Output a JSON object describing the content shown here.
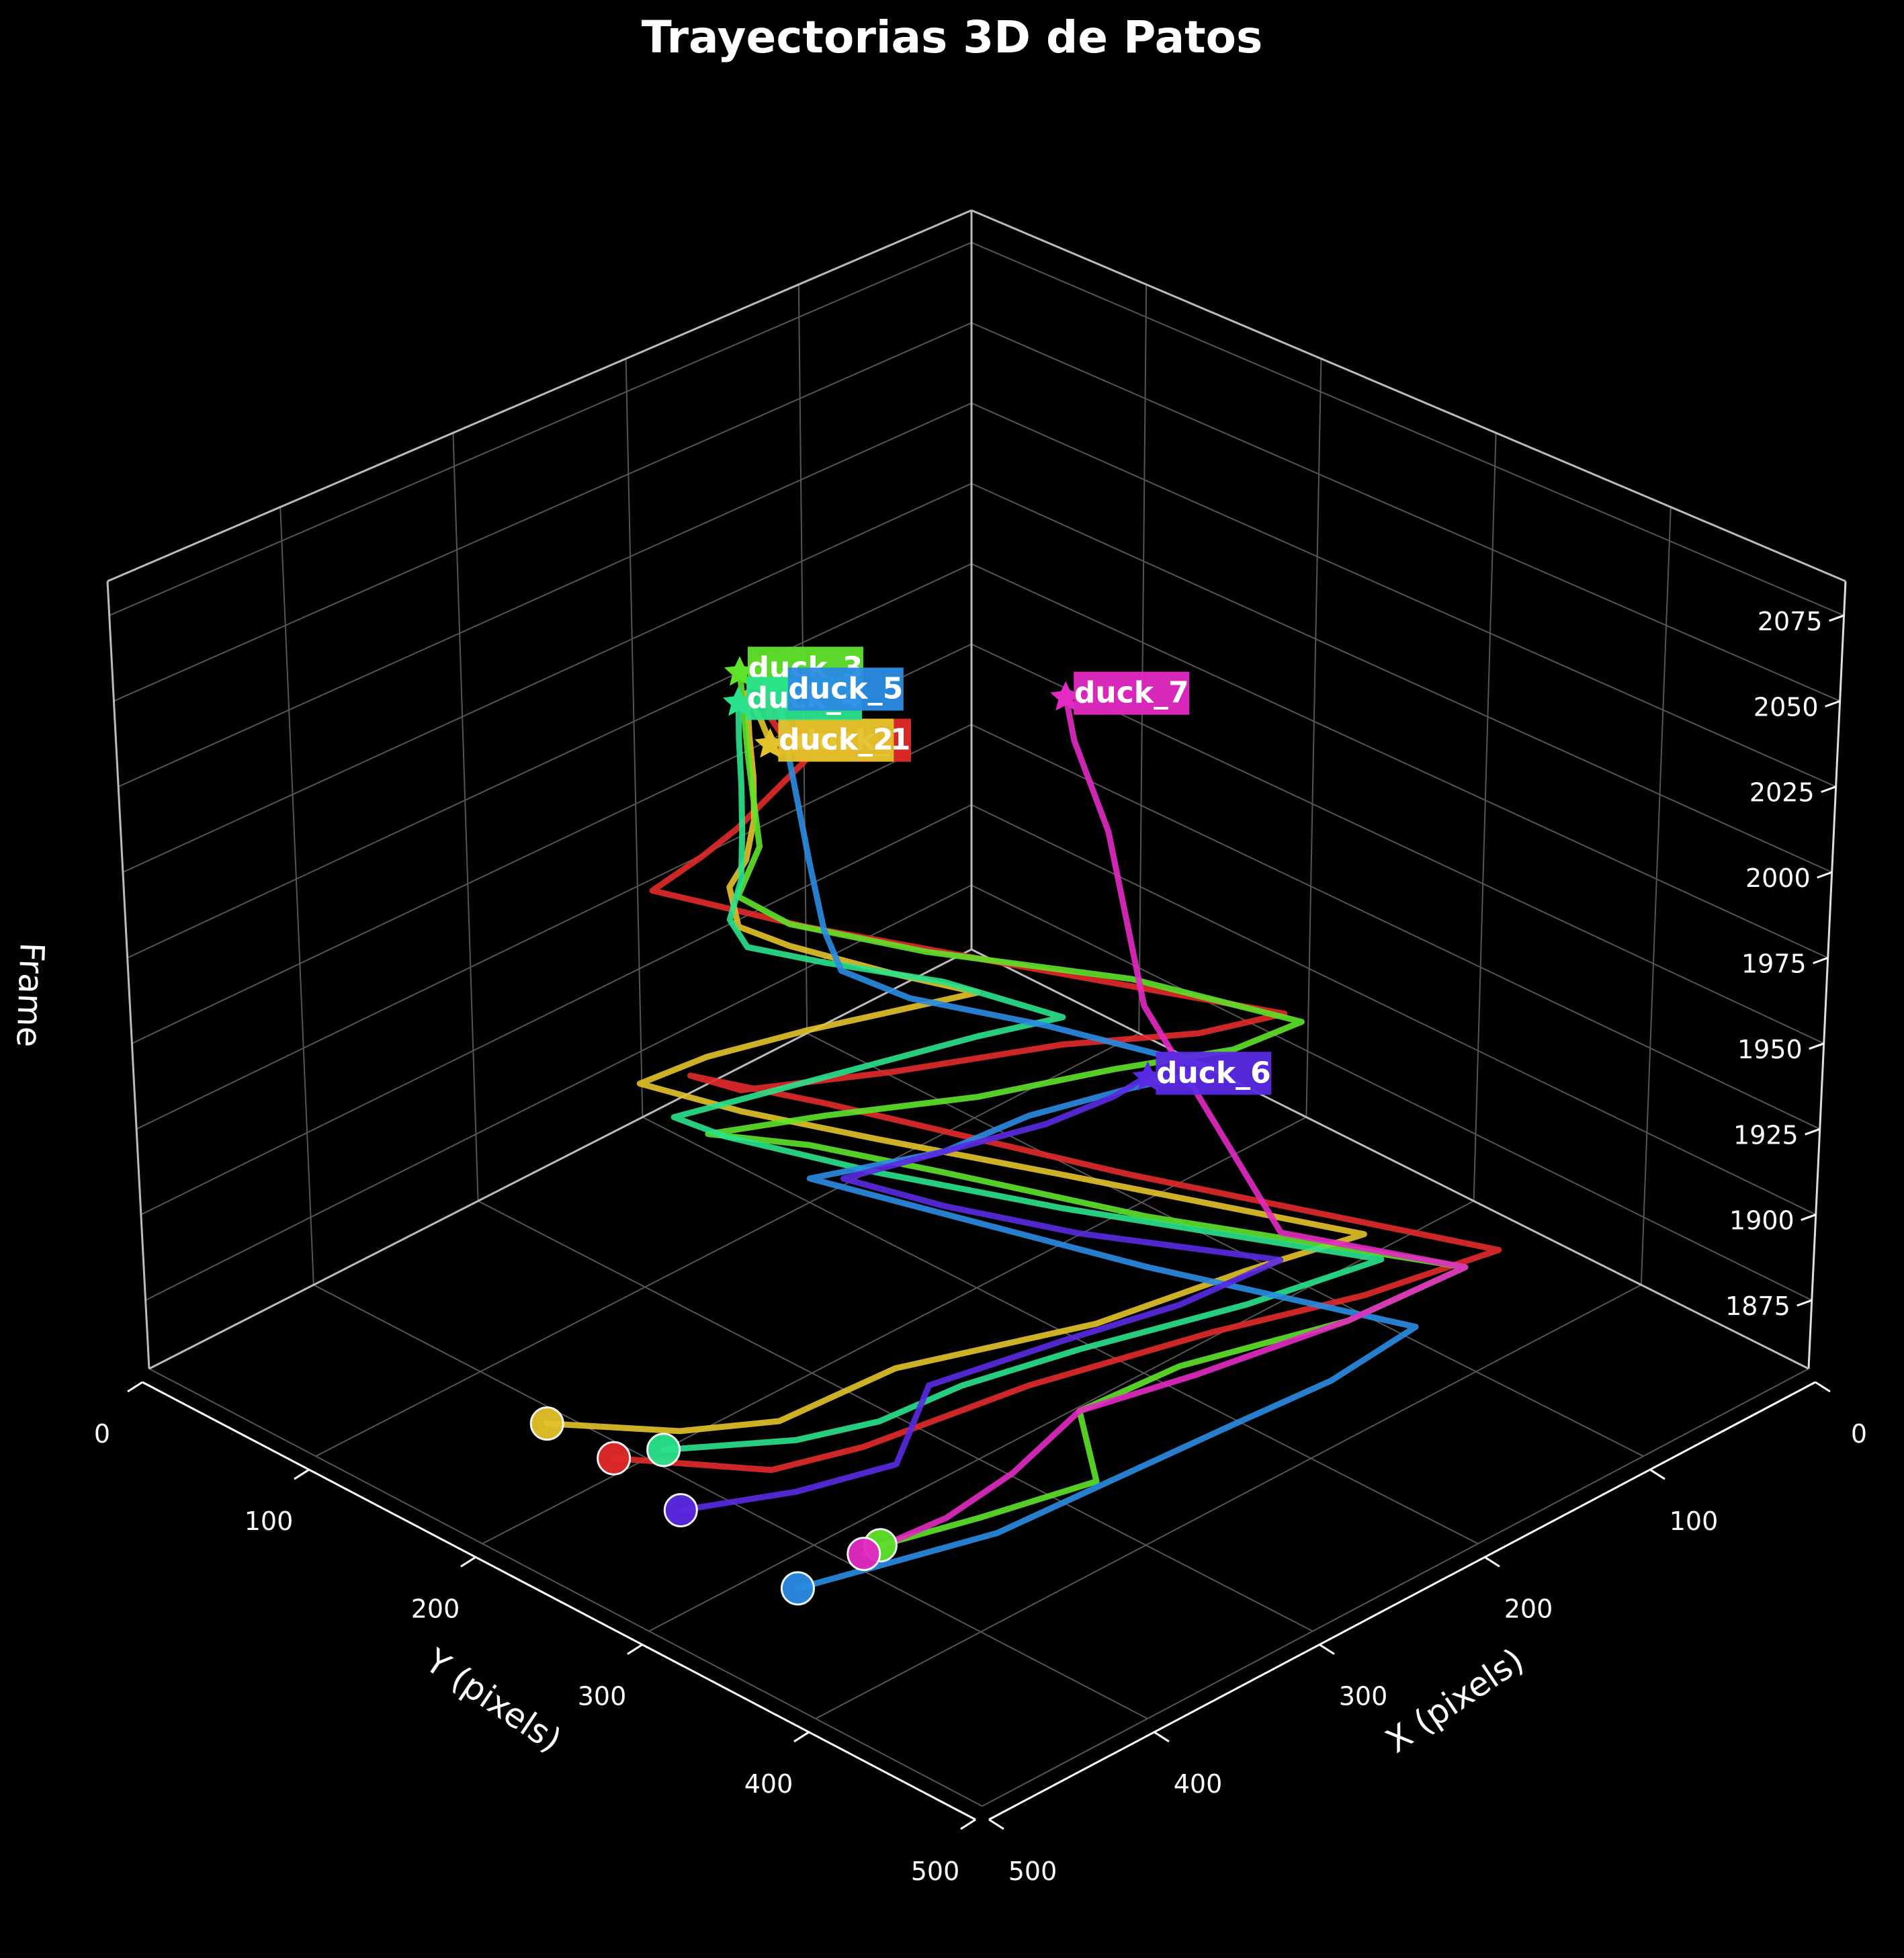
{
  "chart_data": {
    "type": "line",
    "title": "Trayectorias 3D de Patos",
    "xlabel": "X (pixels)",
    "ylabel": "Y (pixels)",
    "zlabel": "Frame",
    "xlim": [
      0,
      500
    ],
    "ylim": [
      0,
      500
    ],
    "zlim": [
      1855,
      2085
    ],
    "x_ticks": [
      0,
      100,
      200,
      300,
      400,
      500
    ],
    "y_ticks": [
      0,
      100,
      200,
      300,
      400,
      500
    ],
    "z_ticks": [
      1875,
      1900,
      1925,
      1950,
      1975,
      2000,
      2025,
      2050,
      2075
    ],
    "grid": true,
    "background": "#000000",
    "series": [
      {
        "name": "duck_1",
        "color": "#e32a2a",
        "points": [
          [
            420,
            200,
            1860
          ],
          [
            395,
            270,
            1868
          ],
          [
            370,
            300,
            1876
          ],
          [
            300,
            330,
            1884
          ],
          [
            230,
            370,
            1892
          ],
          [
            180,
            410,
            1900
          ],
          [
            130,
            440,
            1908
          ],
          [
            210,
            300,
            1916
          ],
          [
            250,
            250,
            1924
          ],
          [
            290,
            200,
            1932
          ],
          [
            330,
            160,
            1940
          ],
          [
            340,
            200,
            1948
          ],
          [
            300,
            250,
            1956
          ],
          [
            250,
            300,
            1964
          ],
          [
            220,
            350,
            1972
          ],
          [
            200,
            380,
            1980
          ],
          [
            260,
            300,
            1988
          ],
          [
            320,
            220,
            1996
          ],
          [
            360,
            170,
            2004
          ],
          [
            340,
            180,
            2012
          ],
          [
            330,
            190,
            2020
          ],
          [
            320,
            200,
            2030
          ],
          [
            310,
            210,
            2040
          ],
          [
            320,
            215,
            2050
          ],
          [
            330,
            215,
            2060
          ],
          [
            338,
            215,
            2070
          ],
          [
            345,
            220,
            2080
          ],
          [
            335,
            215,
            2060
          ],
          [
            325,
            215,
            2050
          ]
        ]
      },
      {
        "name": "duck_2",
        "color": "#e3c32a",
        "points": [
          [
            420,
            160,
            1860
          ],
          [
            400,
            220,
            1868
          ],
          [
            380,
            260,
            1876
          ],
          [
            330,
            280,
            1884
          ],
          [
            260,
            330,
            1892
          ],
          [
            200,
            360,
            1900
          ],
          [
            160,
            390,
            1908
          ],
          [
            230,
            280,
            1916
          ],
          [
            280,
            220,
            1924
          ],
          [
            320,
            180,
            1932
          ],
          [
            350,
            150,
            1940
          ],
          [
            330,
            170,
            1948
          ],
          [
            300,
            200,
            1956
          ],
          [
            280,
            230,
            1964
          ],
          [
            260,
            260,
            1972
          ],
          [
            290,
            240,
            1980
          ],
          [
            320,
            210,
            1988
          ],
          [
            340,
            200,
            1996
          ],
          [
            335,
            190,
            2004
          ],
          [
            330,
            195,
            2012
          ],
          [
            330,
            200,
            2025
          ],
          [
            335,
            205,
            2040
          ],
          [
            342,
            210,
            2055
          ],
          [
            348,
            215,
            2070
          ],
          [
            340,
            215,
            2060
          ],
          [
            330,
            210,
            2050
          ]
        ]
      },
      {
        "name": "duck_3",
        "color": "#5fe32a",
        "points": [
          [
            390,
            330,
            1860
          ],
          [
            360,
            360,
            1868
          ],
          [
            320,
            390,
            1876
          ],
          [
            300,
            360,
            1884
          ],
          [
            260,
            380,
            1892
          ],
          [
            200,
            420,
            1900
          ],
          [
            150,
            440,
            1908
          ],
          [
            230,
            330,
            1916
          ],
          [
            280,
            260,
            1924
          ],
          [
            320,
            220,
            1932
          ],
          [
            360,
            200,
            1940
          ],
          [
            330,
            240,
            1948
          ],
          [
            290,
            290,
            1956
          ],
          [
            250,
            330,
            1964
          ],
          [
            220,
            370,
            1972
          ],
          [
            200,
            390,
            1980
          ],
          [
            240,
            330,
            1988
          ],
          [
            300,
            270,
            1996
          ],
          [
            340,
            230,
            2004
          ],
          [
            355,
            215,
            2012
          ],
          [
            345,
            218,
            2025
          ],
          [
            350,
            220,
            2040
          ],
          [
            355,
            222,
            2055
          ],
          [
            360,
            225,
            2070
          ],
          [
            362,
            225,
            2082
          ]
        ]
      },
      {
        "name": "duck_4",
        "color": "#2ae38c",
        "points": [
          [
            400,
            210,
            1860
          ],
          [
            370,
            260,
            1868
          ],
          [
            350,
            290,
            1876
          ],
          [
            320,
            310,
            1884
          ],
          [
            280,
            340,
            1892
          ],
          [
            220,
            380,
            1900
          ],
          [
            170,
            410,
            1908
          ],
          [
            250,
            300,
            1916
          ],
          [
            300,
            240,
            1924
          ],
          [
            340,
            190,
            1932
          ],
          [
            360,
            180,
            1940
          ],
          [
            330,
            210,
            1948
          ],
          [
            300,
            240,
            1956
          ],
          [
            270,
            270,
            1964
          ],
          [
            250,
            300,
            1972
          ],
          [
            280,
            260,
            1980
          ],
          [
            320,
            230,
            1988
          ],
          [
            350,
            215,
            1996
          ],
          [
            355,
            210,
            2004
          ],
          [
            350,
            212,
            2015
          ],
          [
            352,
            215,
            2030
          ],
          [
            355,
            218,
            2045
          ],
          [
            358,
            220,
            2060
          ],
          [
            360,
            222,
            2072
          ]
        ]
      },
      {
        "name": "duck_5",
        "color": "#2a8ce3",
        "points": [
          [
            440,
            330,
            1860
          ],
          [
            410,
            360,
            1868
          ],
          [
            380,
            390,
            1876
          ],
          [
            330,
            410,
            1884
          ],
          [
            280,
            430,
            1892
          ],
          [
            240,
            450,
            1900
          ],
          [
            200,
            460,
            1908
          ],
          [
            260,
            360,
            1916
          ],
          [
            300,
            300,
            1924
          ],
          [
            340,
            240,
            1932
          ],
          [
            300,
            280,
            1940
          ],
          [
            270,
            300,
            1948
          ],
          [
            240,
            330,
            1956
          ],
          [
            220,
            360,
            1964
          ],
          [
            260,
            300,
            1972
          ],
          [
            300,
            260,
            1980
          ],
          [
            320,
            240,
            1988
          ],
          [
            325,
            235,
            2000
          ],
          [
            330,
            232,
            2020
          ],
          [
            335,
            230,
            2040
          ],
          [
            340,
            228,
            2060
          ],
          [
            342,
            228,
            2072
          ]
        ]
      },
      {
        "name": "duck_6",
        "color": "#5a2ae3",
        "points": [
          [
            430,
            250,
            1860
          ],
          [
            400,
            290,
            1868
          ],
          [
            370,
            320,
            1876
          ],
          [
            330,
            300,
            1884
          ],
          [
            280,
            330,
            1892
          ],
          [
            240,
            360,
            1900
          ],
          [
            200,
            380,
            1908
          ],
          [
            260,
            320,
            1916
          ],
          [
            300,
            280,
            1924
          ],
          [
            330,
            250,
            1932
          ],
          [
            300,
            280,
            1940
          ],
          [
            270,
            310,
            1948
          ],
          [
            250,
            330,
            1956
          ],
          [
            240,
            340,
            1962
          ]
        ]
      },
      {
        "name": "duck_7",
        "color": "#e32ac3",
        "points": [
          [
            400,
            330,
            1860
          ],
          [
            370,
            350,
            1868
          ],
          [
            340,
            360,
            1876
          ],
          [
            300,
            360,
            1884
          ],
          [
            260,
            390,
            1892
          ],
          [
            200,
            420,
            1900
          ],
          [
            150,
            440,
            1908
          ],
          [
            200,
            380,
            1916
          ],
          [
            120,
            220,
            1924
          ],
          [
            40,
            120,
            1932
          ],
          [
            20,
            80,
            1945
          ],
          [
            15,
            70,
            1955
          ]
        ]
      }
    ],
    "labels": [
      {
        "text": "duck_1",
        "color": "#e32a2a"
      },
      {
        "text": "duck_2",
        "color": "#e3c32a"
      },
      {
        "text": "duck_3",
        "color": "#5fe32a"
      },
      {
        "text": "duck_4",
        "color": "#2ae38c"
      },
      {
        "text": "duck_5",
        "color": "#2a8ce3"
      },
      {
        "text": "duck_6",
        "color": "#5a2ae3"
      },
      {
        "text": "duck_7",
        "color": "#e32ac3"
      }
    ]
  }
}
